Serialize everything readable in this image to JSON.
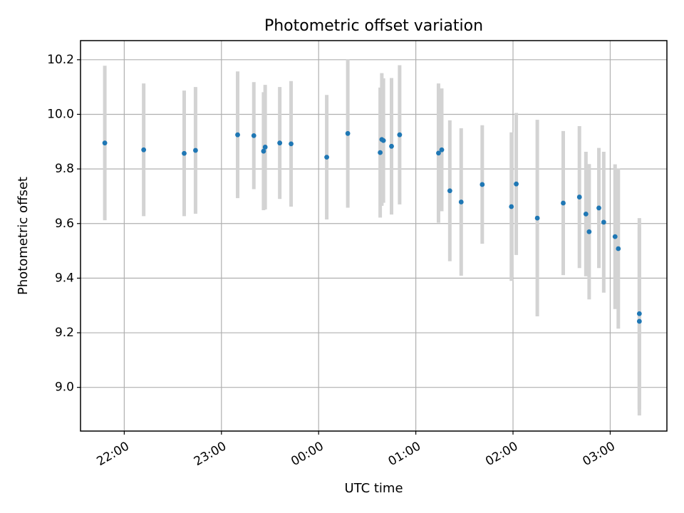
{
  "chart_data": {
    "type": "scatter",
    "title": "Photometric offset variation",
    "xlabel": "UTC time",
    "ylabel": "Photometric offset",
    "x_ticks": [
      "22:00",
      "23:00",
      "00:00",
      "01:00",
      "02:00",
      "03:00"
    ],
    "y_ticks": [
      "9.0",
      "9.2",
      "9.4",
      "9.6",
      "9.8",
      "10.0",
      "10.2"
    ],
    "xlim": [
      "21:33",
      "03:35"
    ],
    "ylim": [
      8.84,
      10.27
    ],
    "grid": true,
    "colors": {
      "point": "#1f77b4",
      "errorbar": "#d3d3d3",
      "grid": "#b0b0b0"
    },
    "series": [
      {
        "points": [
          {
            "x": "21:48",
            "y": 9.895,
            "yerr": 0.283
          },
          {
            "x": "22:12",
            "y": 9.87,
            "yerr": 0.243
          },
          {
            "x": "22:37",
            "y": 9.857,
            "yerr": 0.23
          },
          {
            "x": "22:44",
            "y": 9.868,
            "yerr": 0.232
          },
          {
            "x": "23:10",
            "y": 9.925,
            "yerr": 0.232
          },
          {
            "x": "23:20",
            "y": 9.922,
            "yerr": 0.196
          },
          {
            "x": "23:26",
            "y": 9.865,
            "yerr": 0.216
          },
          {
            "x": "23:27",
            "y": 9.88,
            "yerr": 0.228
          },
          {
            "x": "23:36",
            "y": 9.895,
            "yerr": 0.205
          },
          {
            "x": "23:43",
            "y": 9.892,
            "yerr": 0.23
          },
          {
            "x": "00:05",
            "y": 9.843,
            "yerr": 0.228
          },
          {
            "x": "00:18",
            "y": 9.93,
            "yerr": 0.272
          },
          {
            "x": "00:38",
            "y": 9.86,
            "yerr": 0.238
          },
          {
            "x": "00:39",
            "y": 9.908,
            "yerr": 0.243
          },
          {
            "x": "00:40",
            "y": 9.904,
            "yerr": 0.228
          },
          {
            "x": "00:45",
            "y": 9.883,
            "yerr": 0.25
          },
          {
            "x": "00:50",
            "y": 9.925,
            "yerr": 0.255
          },
          {
            "x": "01:14",
            "y": 9.858,
            "yerr": 0.255
          },
          {
            "x": "01:16",
            "y": 9.87,
            "yerr": 0.225
          },
          {
            "x": "01:21",
            "y": 9.72,
            "yerr": 0.258
          },
          {
            "x": "01:28",
            "y": 9.679,
            "yerr": 0.27
          },
          {
            "x": "01:41",
            "y": 9.743,
            "yerr": 0.217
          },
          {
            "x": "01:59",
            "y": 9.662,
            "yerr": 0.272
          },
          {
            "x": "02:02",
            "y": 9.745,
            "yerr": 0.26
          },
          {
            "x": "02:15",
            "y": 9.62,
            "yerr": 0.36
          },
          {
            "x": "02:31",
            "y": 9.675,
            "yerr": 0.264
          },
          {
            "x": "02:41",
            "y": 9.697,
            "yerr": 0.26
          },
          {
            "x": "02:45",
            "y": 9.635,
            "yerr": 0.228
          },
          {
            "x": "02:47",
            "y": 9.57,
            "yerr": 0.248
          },
          {
            "x": "02:53",
            "y": 9.657,
            "yerr": 0.22
          },
          {
            "x": "02:56",
            "y": 9.605,
            "yerr": 0.258
          },
          {
            "x": "03:03",
            "y": 9.552,
            "yerr": 0.265
          },
          {
            "x": "03:05",
            "y": 9.508,
            "yerr": 0.293
          },
          {
            "x": "03:18",
            "y": 9.27,
            "yerr": 0.35
          },
          {
            "x": "03:18",
            "y": 9.242,
            "yerr": 0.345
          }
        ]
      }
    ]
  }
}
